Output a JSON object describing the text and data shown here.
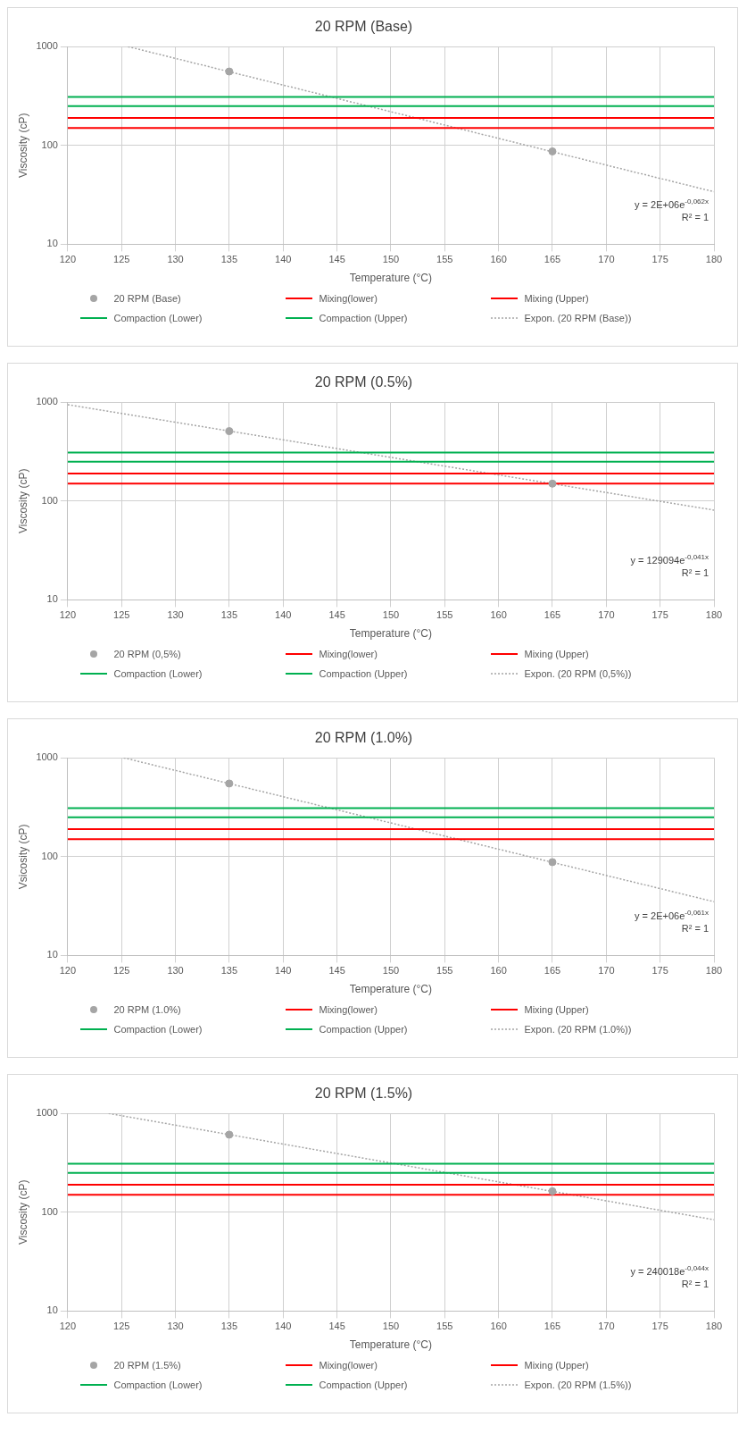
{
  "chart_data": [
    {
      "type": "scatter",
      "title": "20 RPM (Base)",
      "xlabel": "Temperature (°C)",
      "ylabel": "Viscosity (cP)",
      "log": "y",
      "xlim": [
        120,
        180
      ],
      "xticks": [
        120,
        125,
        130,
        135,
        140,
        145,
        150,
        155,
        160,
        165,
        170,
        175,
        180
      ],
      "ylim": [
        10,
        1000
      ],
      "yticks": [
        10,
        100,
        1000
      ],
      "grid": true,
      "legend": "bottom",
      "annotations": [
        "y = 2E+06e$^{-0,062x}$",
        "R² = 1"
      ],
      "series": [
        {
          "name": "20 RPM (Base)",
          "type": "scatter",
          "marker": "circle",
          "color": "#a5a5a5",
          "x": [
            135,
            165
          ],
          "values": [
            560,
            87
          ]
        },
        {
          "name": "Mixing(lower)",
          "type": "line",
          "color": "#ff0000",
          "x": [
            120,
            180
          ],
          "values": [
            150,
            150
          ]
        },
        {
          "name": "Mixing (Upper)",
          "type": "line",
          "color": "#ff0000",
          "x": [
            120,
            180
          ],
          "values": [
            190,
            190
          ]
        },
        {
          "name": "Compaction (Lower)",
          "type": "line",
          "color": "#00b050",
          "x": [
            120,
            180
          ],
          "values": [
            250,
            250
          ]
        },
        {
          "name": "Compaction (Upper)",
          "type": "line",
          "color": "#00b050",
          "x": [
            120,
            180
          ],
          "values": [
            310,
            310
          ]
        },
        {
          "name": "Expon. (20 RPM (Base))",
          "type": "line",
          "line_style": "dotted",
          "color": "#a5a5a5",
          "x": [
            125.6,
            180
          ],
          "values": [
            1000,
            34
          ]
        }
      ]
    },
    {
      "type": "scatter",
      "title": "20 RPM (0.5%)",
      "xlabel": "Temperature (°C)",
      "ylabel": "Viscosity (cP)",
      "log": "y",
      "xlim": [
        120,
        180
      ],
      "xticks": [
        120,
        125,
        130,
        135,
        140,
        145,
        150,
        155,
        160,
        165,
        170,
        175,
        180
      ],
      "ylim": [
        10,
        1000
      ],
      "yticks": [
        10,
        100,
        1000
      ],
      "grid": true,
      "legend": "bottom",
      "annotations": [
        "y = 129094e$^{-0,041x}$",
        "R² = 1"
      ],
      "series": [
        {
          "name": "20 RPM (0,5%)",
          "type": "scatter",
          "marker": "circle",
          "color": "#a5a5a5",
          "x": [
            135,
            165
          ],
          "values": [
            510,
            150
          ]
        },
        {
          "name": "Mixing(lower)",
          "type": "line",
          "color": "#ff0000",
          "x": [
            120,
            180
          ],
          "values": [
            150,
            150
          ]
        },
        {
          "name": "Mixing (Upper)",
          "type": "line",
          "color": "#ff0000",
          "x": [
            120,
            180
          ],
          "values": [
            190,
            190
          ]
        },
        {
          "name": "Compaction (Lower)",
          "type": "line",
          "color": "#00b050",
          "x": [
            120,
            180
          ],
          "values": [
            250,
            250
          ]
        },
        {
          "name": "Compaction (Upper)",
          "type": "line",
          "color": "#00b050",
          "x": [
            120,
            180
          ],
          "values": [
            310,
            310
          ]
        },
        {
          "name": "Expon. (20 RPM (0,5%))",
          "type": "line",
          "line_style": "dotted",
          "color": "#a5a5a5",
          "x": [
            120,
            180
          ],
          "values": [
            945,
            81
          ]
        }
      ]
    },
    {
      "type": "scatter",
      "title": "20 RPM (1.0%)",
      "xlabel": "Temperature (°C)",
      "ylabel": "Vsicosity (cP)",
      "log": "y",
      "xlim": [
        120,
        180
      ],
      "xticks": [
        120,
        125,
        130,
        135,
        140,
        145,
        150,
        155,
        160,
        165,
        170,
        175,
        180
      ],
      "ylim": [
        10,
        1000
      ],
      "yticks": [
        10,
        100,
        1000
      ],
      "grid": true,
      "legend": "bottom",
      "annotations": [
        "y = 2E+06e$^{-0,061x}$",
        "R² = 1"
      ],
      "series": [
        {
          "name": "20 RPM (1.0%)",
          "type": "scatter",
          "marker": "circle",
          "color": "#a5a5a5",
          "x": [
            135,
            165
          ],
          "values": [
            550,
            88
          ]
        },
        {
          "name": "Mixing(lower)",
          "type": "line",
          "color": "#ff0000",
          "x": [
            120,
            180
          ],
          "values": [
            150,
            150
          ]
        },
        {
          "name": "Mixing (Upper)",
          "type": "line",
          "color": "#ff0000",
          "x": [
            120,
            180
          ],
          "values": [
            190,
            190
          ]
        },
        {
          "name": "Compaction (Lower)",
          "type": "line",
          "color": "#00b050",
          "x": [
            120,
            180
          ],
          "values": [
            250,
            250
          ]
        },
        {
          "name": "Compaction (Upper)",
          "type": "line",
          "color": "#00b050",
          "x": [
            120,
            180
          ],
          "values": [
            310,
            310
          ]
        },
        {
          "name": "Expon. (20 RPM (1.0%))",
          "type": "line",
          "line_style": "dotted",
          "color": "#a5a5a5",
          "x": [
            125.2,
            180
          ],
          "values": [
            1000,
            35
          ]
        }
      ]
    },
    {
      "type": "scatter",
      "title": "20 RPM (1.5%)",
      "xlabel": "Temperature (°C)",
      "ylabel": "Viscosity (cP)",
      "log": "y",
      "xlim": [
        120,
        180
      ],
      "xticks": [
        120,
        125,
        130,
        135,
        140,
        145,
        150,
        155,
        160,
        165,
        170,
        175,
        180
      ],
      "ylim": [
        10,
        1000
      ],
      "yticks": [
        10,
        100,
        1000
      ],
      "grid": true,
      "legend": "bottom",
      "annotations": [
        "y = 240018e$^{-0,044x}$",
        "R² = 1"
      ],
      "series": [
        {
          "name": "20 RPM (1.5%)",
          "type": "scatter",
          "marker": "circle",
          "color": "#a5a5a5",
          "x": [
            135,
            165
          ],
          "values": [
            610,
            163
          ]
        },
        {
          "name": "Mixing(lower)",
          "type": "line",
          "color": "#ff0000",
          "x": [
            120,
            180
          ],
          "values": [
            150,
            150
          ]
        },
        {
          "name": "Mixing (Upper)",
          "type": "line",
          "color": "#ff0000",
          "x": [
            120,
            180
          ],
          "values": [
            190,
            190
          ]
        },
        {
          "name": "Compaction (Lower)",
          "type": "line",
          "color": "#00b050",
          "x": [
            120,
            180
          ],
          "values": [
            250,
            250
          ]
        },
        {
          "name": "Compaction (Upper)",
          "type": "line",
          "color": "#00b050",
          "x": [
            120,
            180
          ],
          "values": [
            310,
            310
          ]
        },
        {
          "name": "Expon. (20 RPM (1.5%))",
          "type": "line",
          "line_style": "dotted",
          "color": "#a5a5a5",
          "x": [
            123.8,
            180
          ],
          "values": [
            1000,
            84
          ]
        }
      ]
    }
  ]
}
